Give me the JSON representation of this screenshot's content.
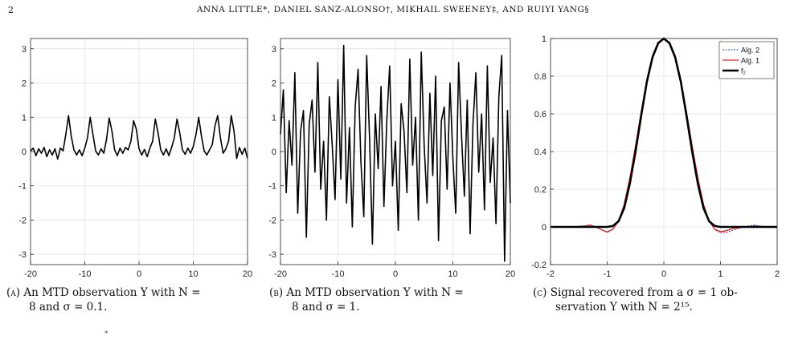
{
  "page_number": "2",
  "running_header": "ANNA LITTLE*, DANIEL SANZ-ALONSO†, MIKHAIL SWEENEY‡, AND RUIYI YANG§",
  "captions": [
    {
      "label": "(a)",
      "text_line1": "An MTD observation Y with N =",
      "text_line2": "8 and σ = 0.1."
    },
    {
      "label": "(b)",
      "text_line1": "An MTD observation Y with N =",
      "text_line2": "8 and σ = 1."
    },
    {
      "label": "(c)",
      "text_line1": "Signal recovered from a σ = 1 ob-",
      "text_line2": "servation Y with N = 2¹⁵."
    }
  ],
  "footnote_mark": "*",
  "chart_data": [
    {
      "type": "line",
      "title": "",
      "xlim": [
        -20,
        20
      ],
      "ylim": [
        -3.3,
        3.3
      ],
      "xticks": [
        -20,
        -10,
        0,
        10,
        20
      ],
      "yticks": [
        -3,
        -2,
        -1,
        0,
        1,
        2,
        3
      ],
      "grid": true,
      "series": [
        {
          "color": "#000000",
          "x": [
            -20,
            -19.5,
            -19,
            -18.5,
            -18,
            -17.5,
            -17,
            -16.5,
            -16,
            -15.5,
            -15,
            -14.5,
            -14,
            -13.5,
            -13,
            -12.5,
            -12,
            -11.5,
            -11,
            -10.5,
            -10,
            -9.5,
            -9,
            -8.5,
            -8,
            -7.5,
            -7,
            -6.5,
            -6,
            -5.5,
            -5,
            -4.5,
            -4,
            -3.5,
            -3,
            -2.5,
            -2,
            -1.5,
            -1,
            -0.5,
            0,
            0.5,
            1,
            1.5,
            2,
            2.5,
            3,
            3.5,
            4,
            4.5,
            5,
            5.5,
            6,
            6.5,
            7,
            7.5,
            8,
            8.5,
            9,
            9.5,
            10,
            10.5,
            11,
            11.5,
            12,
            12.5,
            13,
            13.5,
            14,
            14.5,
            15,
            15.5,
            16,
            16.5,
            17,
            17.5,
            18,
            18.5,
            19,
            19.5,
            20
          ],
          "values": [
            0.02,
            0.1,
            -0.12,
            0.08,
            -0.05,
            0.12,
            -0.15,
            0.05,
            -0.1,
            0.08,
            -0.22,
            0.1,
            0.02,
            0.5,
            1.05,
            0.45,
            0.05,
            -0.1,
            0.05,
            -0.12,
            0.1,
            0.4,
            1.0,
            0.5,
            0.02,
            -0.1,
            0.08,
            -0.05,
            0.35,
            0.98,
            0.6,
            0.05,
            -0.12,
            0.1,
            -0.05,
            0.12,
            0.05,
            0.3,
            0.9,
            0.65,
            0.08,
            -0.1,
            0.06,
            -0.15,
            0.1,
            0.3,
            0.95,
            0.55,
            0.05,
            -0.1,
            0.08,
            -0.12,
            0.12,
            0.4,
            0.95,
            0.55,
            0.05,
            -0.08,
            0.1,
            -0.05,
            0.15,
            0.5,
            1.0,
            0.45,
            0.02,
            -0.1,
            0.05,
            0.2,
            0.75,
            1.05,
            0.4,
            -0.05,
            0.08,
            0.3,
            1.05,
            0.6,
            -0.2,
            0.12,
            -0.08,
            0.1,
            -0.2
          ]
        }
      ]
    },
    {
      "type": "line",
      "title": "",
      "xlim": [
        -20,
        20
      ],
      "ylim": [
        -3.3,
        3.3
      ],
      "xticks": [
        -20,
        -10,
        0,
        10,
        20
      ],
      "yticks": [
        -3,
        -2,
        -1,
        0,
        1,
        2,
        3
      ],
      "grid": true,
      "series": [
        {
          "color": "#000000",
          "x": [
            -20,
            -19.5,
            -19,
            -18.5,
            -18,
            -17.5,
            -17,
            -16.5,
            -16,
            -15.5,
            -15,
            -14.5,
            -14,
            -13.5,
            -13,
            -12.5,
            -12,
            -11.5,
            -11,
            -10.5,
            -10,
            -9.5,
            -9,
            -8.5,
            -8,
            -7.5,
            -7,
            -6.5,
            -6,
            -5.5,
            -5,
            -4.5,
            -4,
            -3.5,
            -3,
            -2.5,
            -2,
            -1.5,
            -1,
            -0.5,
            0,
            0.5,
            1,
            1.5,
            2,
            2.5,
            3,
            3.5,
            4,
            4.5,
            5,
            5.5,
            6,
            6.5,
            7,
            7.5,
            8,
            8.5,
            9,
            9.5,
            10,
            10.5,
            11,
            11.5,
            12,
            12.5,
            13,
            13.5,
            14,
            14.5,
            15,
            15.5,
            16,
            16.5,
            17,
            17.5,
            18,
            18.5,
            19,
            19.5,
            20
          ],
          "values": [
            0.5,
            1.8,
            -1.2,
            0.9,
            -0.4,
            2.3,
            -1.8,
            0.6,
            1.2,
            -2.5,
            0.8,
            1.5,
            -0.6,
            2.6,
            -1.1,
            0.3,
            -2.0,
            1.6,
            0.2,
            -1.4,
            2.1,
            -0.8,
            3.1,
            -1.5,
            0.7,
            -2.2,
            1.3,
            2.4,
            -0.3,
            -1.9,
            2.8,
            0.4,
            -2.7,
            1.1,
            -0.5,
            1.9,
            -1.6,
            0.9,
            2.5,
            -1.0,
            0.3,
            -2.3,
            1.4,
            0.6,
            -1.2,
            2.7,
            -0.4,
            1.0,
            -2.0,
            2.9,
            0.2,
            -1.5,
            1.7,
            -0.7,
            2.2,
            -2.6,
            0.9,
            1.3,
            -1.1,
            2.0,
            -0.2,
            -1.8,
            2.6,
            0.5,
            -1.3,
            1.5,
            -2.4,
            0.8,
            2.3,
            -0.6,
            1.1,
            -1.7,
            2.5,
            -0.9,
            0.4,
            -2.1,
            1.6,
            2.8,
            -3.2,
            1.2,
            -1.5
          ]
        }
      ]
    },
    {
      "type": "line",
      "title": "",
      "xlim": [
        -2,
        2
      ],
      "ylim": [
        -0.2,
        1.0
      ],
      "xticks": [
        -2,
        -1,
        0,
        1,
        2
      ],
      "yticks": [
        -0.2,
        0,
        0.2,
        0.4,
        0.6,
        0.8,
        1
      ],
      "grid": true,
      "legend": "top-right",
      "series": [
        {
          "name": "Alg. 2",
          "color": "#1f3fd6",
          "dash": true,
          "width": 1,
          "x": [
            -2,
            -1.8,
            -1.6,
            -1.4,
            -1.3,
            -1.2,
            -1.1,
            -1.0,
            -0.9,
            -0.8,
            -0.7,
            -0.6,
            -0.5,
            -0.4,
            -0.3,
            -0.2,
            -0.1,
            0,
            0.1,
            0.2,
            0.3,
            0.4,
            0.5,
            0.6,
            0.7,
            0.8,
            0.9,
            1.0,
            1.1,
            1.2,
            1.4,
            1.6,
            1.8,
            2
          ],
          "values": [
            0,
            0,
            0,
            0.005,
            0.01,
            0,
            -0.015,
            -0.025,
            -0.01,
            0.03,
            0.12,
            0.26,
            0.43,
            0.61,
            0.78,
            0.91,
            0.98,
            1.0,
            0.98,
            0.91,
            0.78,
            0.61,
            0.43,
            0.26,
            0.12,
            0.03,
            -0.015,
            -0.03,
            -0.03,
            -0.02,
            0,
            0.01,
            0,
            0
          ]
        },
        {
          "name": "Alg. 1",
          "color": "#e02020",
          "dash": false,
          "width": 1.3,
          "x": [
            -2,
            -1.8,
            -1.6,
            -1.4,
            -1.3,
            -1.2,
            -1.1,
            -1.0,
            -0.9,
            -0.8,
            -0.7,
            -0.6,
            -0.5,
            -0.4,
            -0.3,
            -0.2,
            -0.1,
            0,
            0.1,
            0.2,
            0.3,
            0.4,
            0.5,
            0.6,
            0.7,
            0.8,
            0.9,
            1.0,
            1.1,
            1.2,
            1.4,
            1.6,
            1.8,
            2
          ],
          "values": [
            0,
            0,
            0,
            0.005,
            0.01,
            0,
            -0.015,
            -0.028,
            -0.012,
            0.03,
            0.12,
            0.26,
            0.43,
            0.61,
            0.78,
            0.91,
            0.98,
            1.0,
            0.98,
            0.91,
            0.78,
            0.61,
            0.43,
            0.26,
            0.12,
            0.03,
            -0.012,
            -0.025,
            -0.02,
            -0.01,
            0,
            0.005,
            0,
            0
          ]
        },
        {
          "name": "f₂",
          "color": "#000000",
          "dash": false,
          "width": 2.6,
          "x": [
            -2,
            -1.8,
            -1.6,
            -1.4,
            -1.3,
            -1.2,
            -1.1,
            -1.0,
            -0.9,
            -0.8,
            -0.7,
            -0.6,
            -0.5,
            -0.4,
            -0.3,
            -0.2,
            -0.1,
            0,
            0.1,
            0.2,
            0.3,
            0.4,
            0.5,
            0.6,
            0.7,
            0.8,
            0.9,
            1.0,
            1.1,
            1.2,
            1.4,
            1.6,
            1.8,
            2
          ],
          "values": [
            0,
            0,
            0,
            0,
            0,
            0,
            0,
            0,
            0.005,
            0.03,
            0.1,
            0.23,
            0.4,
            0.59,
            0.77,
            0.9,
            0.975,
            1.0,
            0.975,
            0.9,
            0.77,
            0.59,
            0.4,
            0.23,
            0.1,
            0.03,
            0.005,
            0,
            0,
            0,
            0,
            0,
            0,
            0
          ]
        }
      ]
    }
  ]
}
